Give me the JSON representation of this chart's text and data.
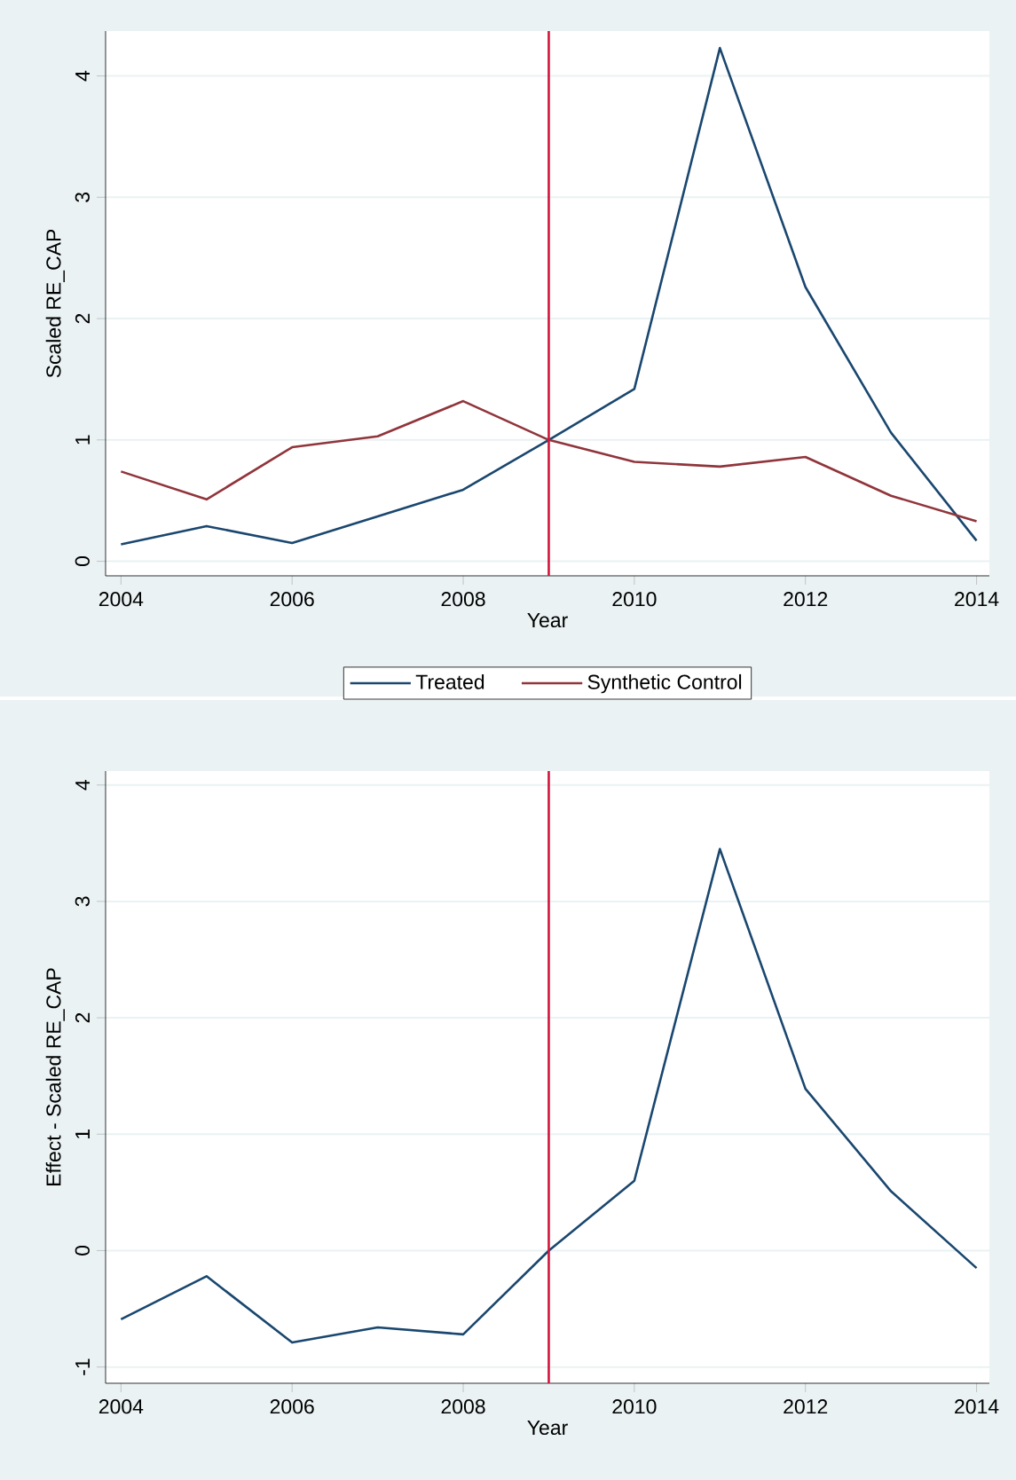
{
  "chart_data": [
    {
      "type": "line",
      "xlabel": "Year",
      "ylabel": "Scaled RE_CAP",
      "x": [
        2004,
        2005,
        2006,
        2007,
        2008,
        2009,
        2010,
        2011,
        2012,
        2013,
        2014
      ],
      "series": [
        {
          "name": "Treated",
          "color": "#1a476f",
          "values": [
            0.14,
            0.29,
            0.15,
            0.37,
            0.59,
            1.0,
            1.42,
            4.23,
            2.26,
            1.06,
            0.17
          ]
        },
        {
          "name": "Synthetic Control",
          "color": "#90353b",
          "values": [
            0.74,
            0.51,
            0.94,
            1.03,
            1.32,
            1.0,
            0.82,
            0.78,
            0.86,
            0.54,
            0.33
          ]
        }
      ],
      "xlim": [
        2003.82,
        2014.15
      ],
      "ylim": [
        -0.12,
        4.37
      ],
      "xticks": [
        2004,
        2006,
        2008,
        2010,
        2012,
        2014
      ],
      "yticks": [
        0,
        1,
        2,
        3,
        4
      ],
      "grid": "y",
      "legend": "bottom",
      "line_style": "solid",
      "ref_lines": [
        {
          "axis": "x",
          "value": 2009,
          "color": "#d2143c"
        }
      ]
    },
    {
      "type": "line",
      "xlabel": "Year",
      "ylabel": "Effect - Scaled RE_CAP",
      "x": [
        2004,
        2005,
        2006,
        2007,
        2008,
        2009,
        2010,
        2011,
        2012,
        2013,
        2014
      ],
      "series": [
        {
          "color": "#1a476f",
          "values": [
            -0.59,
            -0.22,
            -0.79,
            -0.66,
            -0.72,
            0.0,
            0.6,
            3.45,
            1.39,
            0.51,
            -0.15
          ]
        }
      ],
      "xlim": [
        2003.82,
        2014.15
      ],
      "ylim": [
        -1.14,
        4.12
      ],
      "xticks": [
        2004,
        2006,
        2008,
        2010,
        2012,
        2014
      ],
      "yticks": [
        -1,
        0,
        1,
        2,
        3,
        4
      ],
      "grid": "y",
      "line_style": "solid",
      "ref_lines": [
        {
          "axis": "x",
          "value": 2009,
          "color": "#d2143c"
        }
      ]
    }
  ]
}
